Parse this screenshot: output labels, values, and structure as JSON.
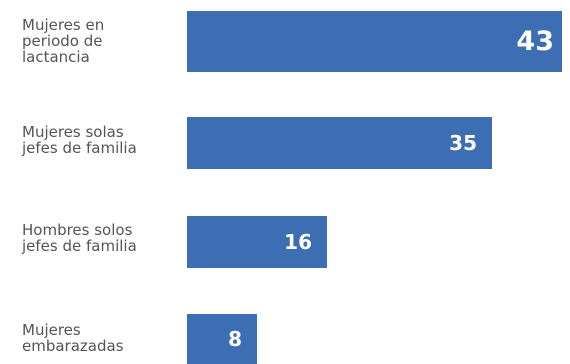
{
  "chart_data": {
    "type": "bar",
    "orientation": "horizontal",
    "categories": [
      "Mujeres en\nperiodo de\nlactancia",
      "Mujeres solas\njefes de familia",
      "Hombres solos\njefes de familia",
      "Mujeres\nembarazadas"
    ],
    "values": [
      43,
      35,
      16,
      8
    ],
    "xlim": [
      0,
      43
    ],
    "bar_color": "#3d6eb4",
    "label_color": "#555555",
    "value_label_color": "#ffffff",
    "grid": false,
    "legend": "none"
  }
}
